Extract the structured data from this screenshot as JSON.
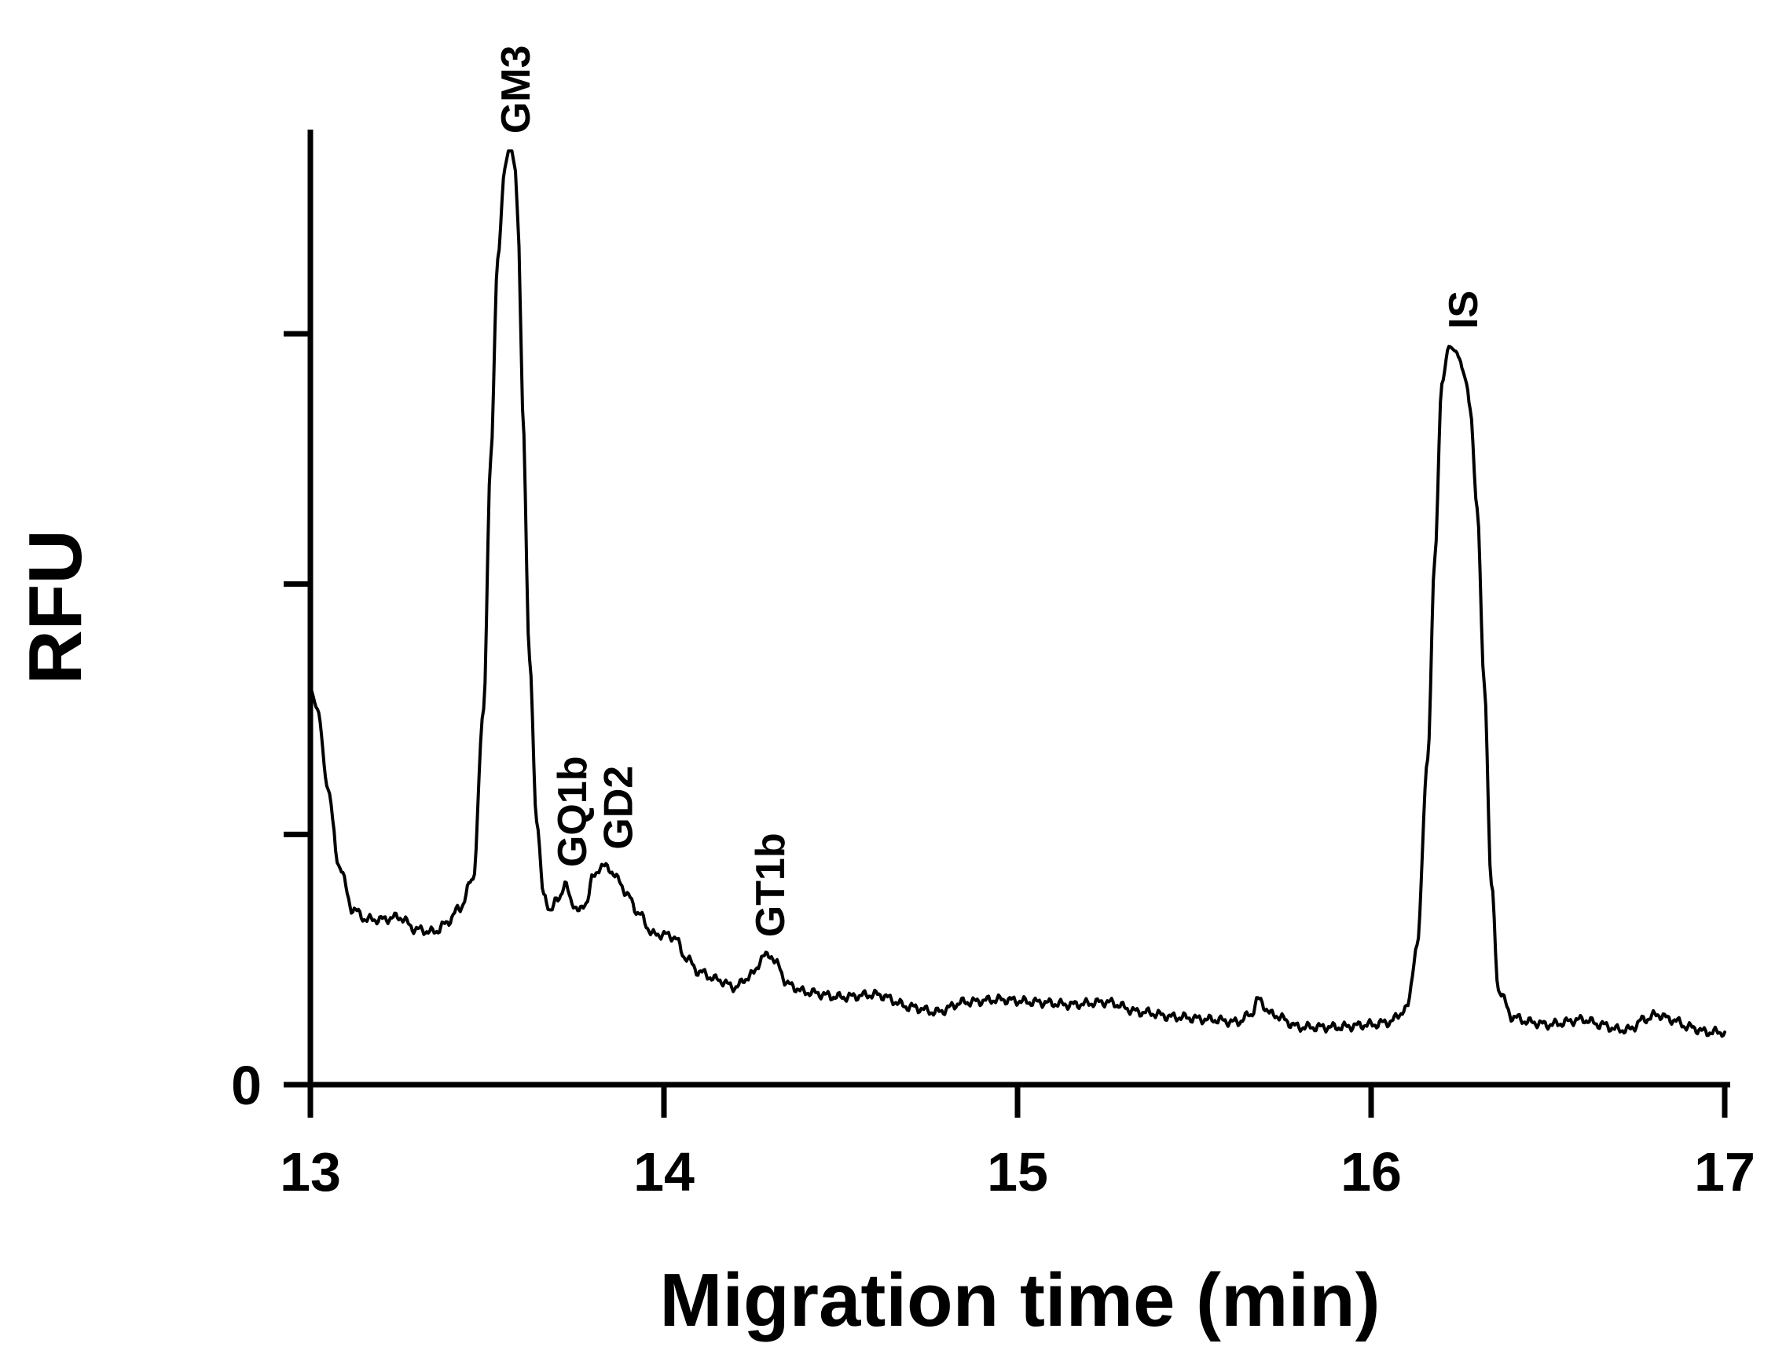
{
  "chart_data": {
    "type": "line",
    "title": "",
    "xlabel": "Migration time (min)",
    "ylabel": "RFU",
    "xlim": [
      13,
      17
    ],
    "ylim": [
      0,
      3.8
    ],
    "x_ticks": [
      13,
      14,
      15,
      16,
      17
    ],
    "x_tick_labels": [
      "13",
      "14",
      "15",
      "16",
      "17"
    ],
    "y_ticks": [
      0,
      1,
      2,
      3
    ],
    "y_tick_labels": [
      "0",
      "",
      "",
      ""
    ],
    "grid": false,
    "legend": "none",
    "line_color": "#000000",
    "series": [
      {
        "x": [
          13.0,
          13.02,
          13.05,
          13.08,
          13.12,
          13.16,
          13.2,
          13.25,
          13.3,
          13.35,
          13.38,
          13.42,
          13.46,
          13.49,
          13.51,
          13.53,
          13.55,
          13.56,
          13.57,
          13.58,
          13.59,
          13.6,
          13.62,
          13.64,
          13.66,
          13.68,
          13.7,
          13.72,
          13.74,
          13.76,
          13.78,
          13.8,
          13.82,
          13.84,
          13.87,
          13.9,
          13.93,
          13.97,
          14.0,
          14.03,
          14.06,
          14.1,
          14.15,
          14.2,
          14.25,
          14.28,
          14.3,
          14.32,
          14.35,
          14.4,
          14.5,
          14.6,
          14.7,
          14.77,
          14.85,
          14.95,
          15.05,
          15.15,
          15.25,
          15.35,
          15.45,
          15.55,
          15.62,
          15.66,
          15.68,
          15.72,
          15.8,
          15.9,
          16.0,
          16.05,
          16.1,
          16.13,
          16.16,
          16.18,
          16.2,
          16.22,
          16.24,
          16.25,
          16.26,
          16.27,
          16.28,
          16.3,
          16.32,
          16.34,
          16.36,
          16.4,
          16.45,
          16.5,
          16.6,
          16.65,
          16.7,
          16.73,
          16.77,
          16.81,
          16.85,
          16.9,
          16.95,
          17.0
        ],
        "values": [
          1.58,
          1.5,
          1.18,
          0.88,
          0.7,
          0.66,
          0.66,
          0.67,
          0.62,
          0.61,
          0.64,
          0.7,
          0.82,
          1.5,
          2.5,
          3.3,
          3.66,
          3.73,
          3.73,
          3.65,
          3.35,
          2.7,
          1.7,
          1.05,
          0.75,
          0.7,
          0.74,
          0.8,
          0.73,
          0.69,
          0.73,
          0.83,
          0.87,
          0.87,
          0.82,
          0.75,
          0.68,
          0.6,
          0.6,
          0.59,
          0.51,
          0.45,
          0.42,
          0.39,
          0.44,
          0.51,
          0.52,
          0.48,
          0.4,
          0.37,
          0.35,
          0.36,
          0.31,
          0.29,
          0.33,
          0.34,
          0.33,
          0.32,
          0.33,
          0.29,
          0.27,
          0.26,
          0.25,
          0.28,
          0.34,
          0.28,
          0.23,
          0.23,
          0.24,
          0.25,
          0.3,
          0.55,
          1.3,
          2.1,
          2.8,
          2.95,
          2.93,
          2.9,
          2.85,
          2.8,
          2.7,
          2.3,
          1.6,
          0.8,
          0.38,
          0.27,
          0.25,
          0.24,
          0.26,
          0.24,
          0.22,
          0.22,
          0.26,
          0.28,
          0.26,
          0.23,
          0.21,
          0.21
        ]
      }
    ],
    "annotations": [
      {
        "text": "GM3",
        "x": 13.58,
        "y": 3.73
      },
      {
        "text": "GQ1b",
        "x": 13.74,
        "y": 0.8
      },
      {
        "text": "GD2",
        "x": 13.87,
        "y": 0.87
      },
      {
        "text": "GT1b",
        "x": 14.3,
        "y": 0.52
      },
      {
        "text": "IS",
        "x": 16.26,
        "y": 2.95
      }
    ]
  }
}
